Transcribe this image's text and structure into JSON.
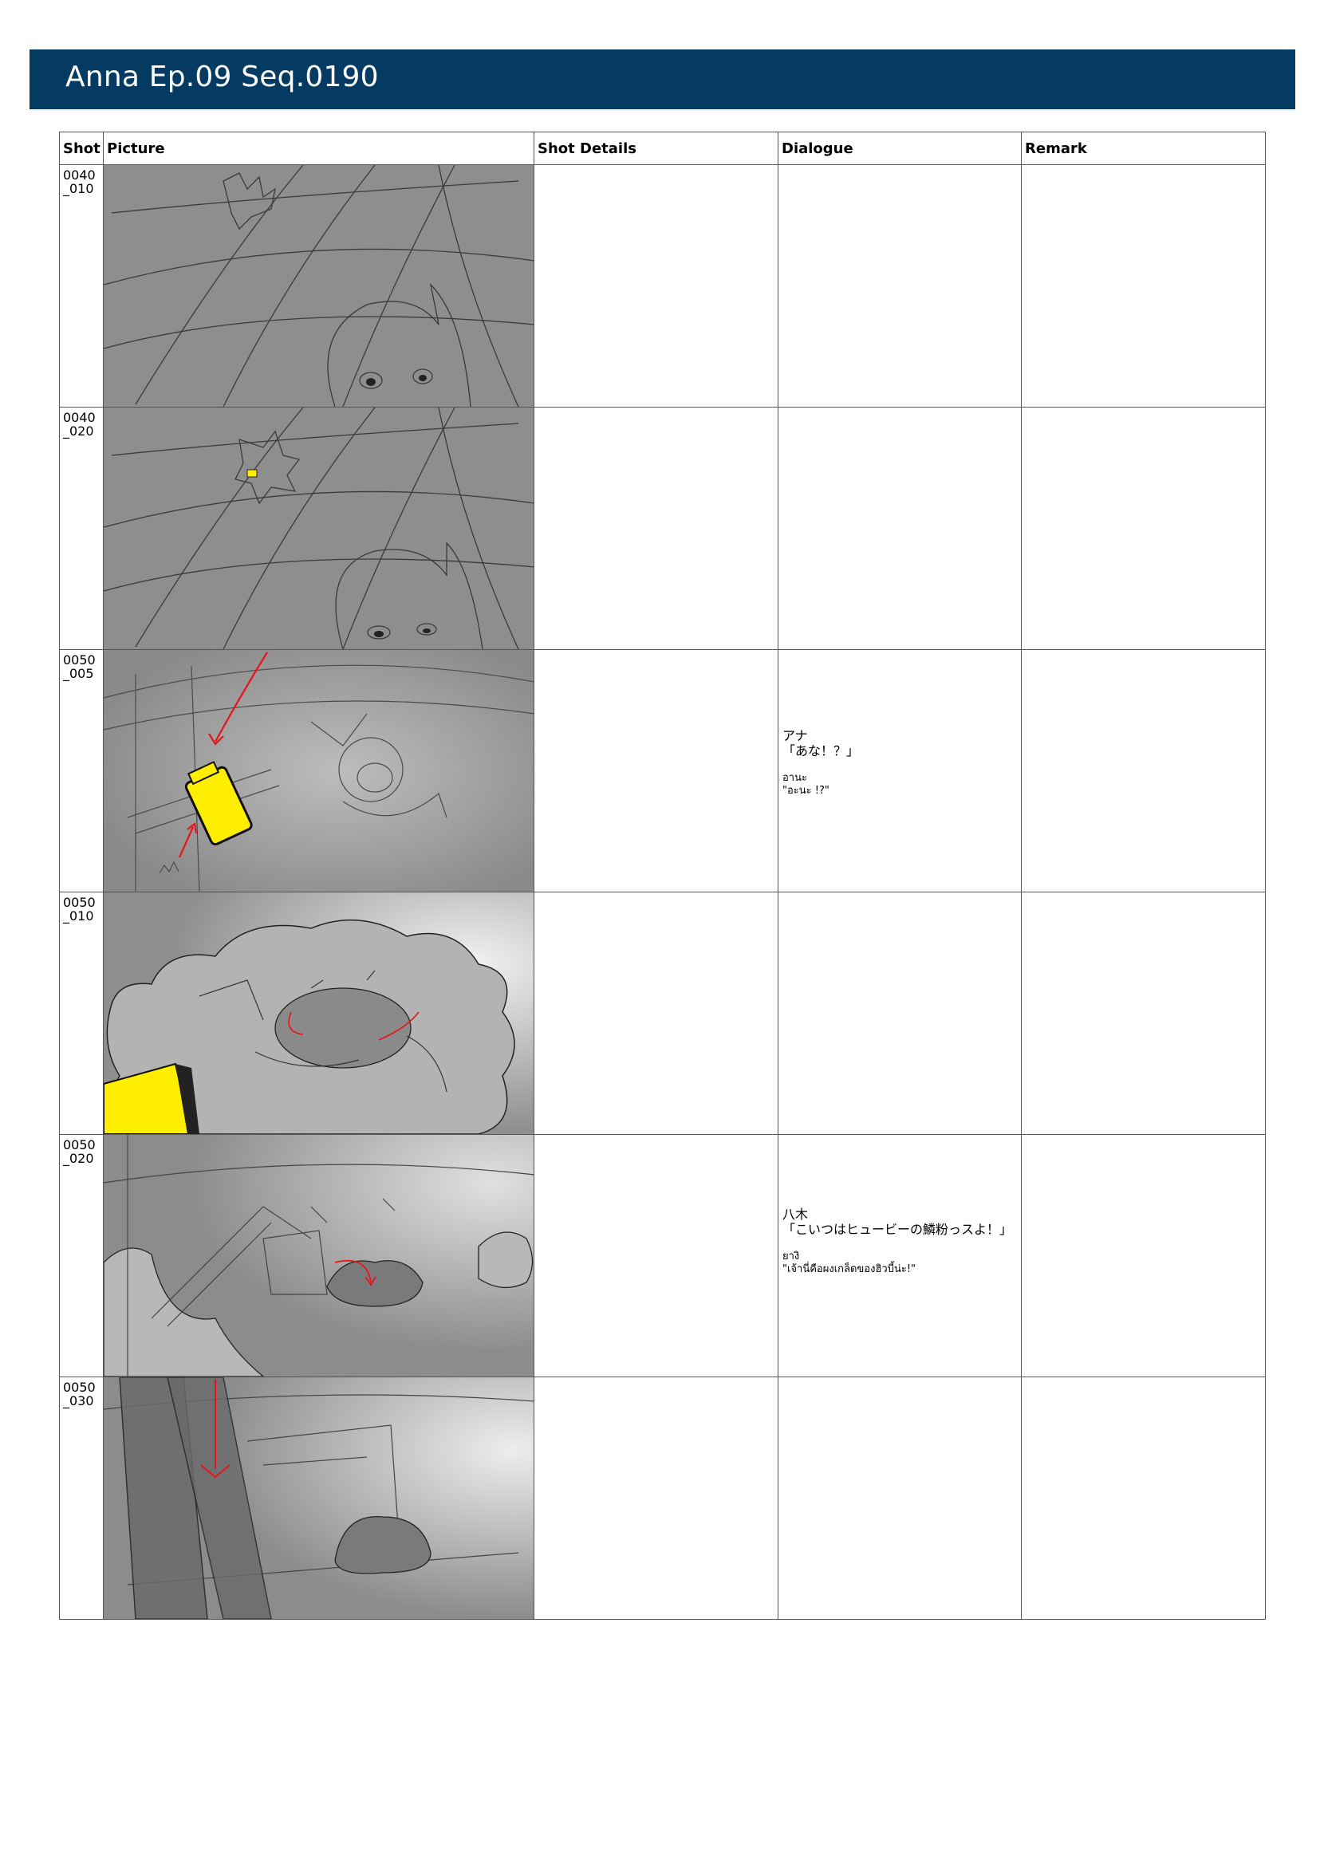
{
  "header": {
    "title": "Anna Ep.09 Seq.0190"
  },
  "columns": {
    "shot": "Shot",
    "picture": "Picture",
    "details": "Shot Details",
    "dialogue": "Dialogue",
    "remark": "Remark"
  },
  "rows": [
    {
      "shot": "0040\n_010"
    },
    {
      "shot": "0040\n_020"
    },
    {
      "shot": "0050\n_005",
      "dialogue": [
        {
          "speaker": "アナ",
          "line": "「あな！？」"
        },
        {
          "speaker": "อานะ",
          "line": "\"อะนะ !?\""
        }
      ]
    },
    {
      "shot": "0050\n_010"
    },
    {
      "shot": "0050\n_020",
      "dialogue": [
        {
          "speaker": "八木",
          "line": "「こいつはヒュービーの鱗粉っスよ！」"
        },
        {
          "speaker": "ยางิ",
          "line": "\"เจ้านี่คือผงเกล็ดของฮิวบี้น่ะ!\""
        }
      ]
    },
    {
      "shot": "0050\n_030"
    }
  ],
  "colors": {
    "title_bar": "#053a63",
    "sketch_bg": "#8e8e8e",
    "highlight": "#ffee00",
    "arrow": "#e8141b"
  }
}
